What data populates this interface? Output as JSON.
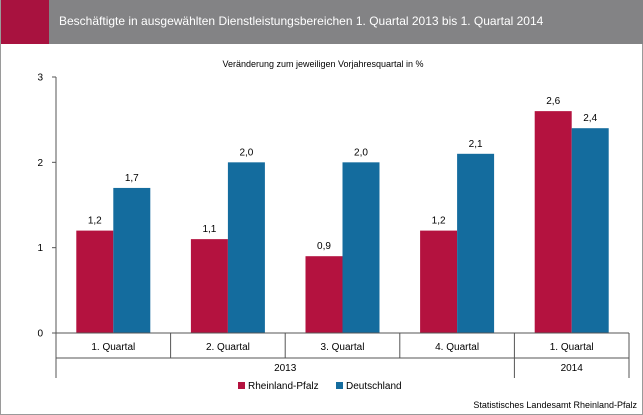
{
  "header": {
    "title": "Beschäftigte in ausgewählten Dienstleistungsbereichen 1. Quartal 2013 bis 1. Quartal 2014"
  },
  "source": "Statistisches Landesamt Rheinland-Pfalz",
  "colors": {
    "header_bg": "#838385",
    "accent": "#a8123f",
    "rheinland_pfalz": "#b4123f",
    "deutschland": "#146c9e"
  },
  "chart_data": {
    "type": "bar",
    "subtitle": "Veränderung zum jeweiligen Vorjahresquartal in %",
    "categories": [
      "1. Quartal",
      "2. Quartal",
      "3. Quartal",
      "4. Quartal",
      "1. Quartal"
    ],
    "year_groups": [
      {
        "label": "2013",
        "from": 0,
        "to": 3
      },
      {
        "label": "2014",
        "from": 4,
        "to": 4
      }
    ],
    "series": [
      {
        "name": "Rheinland-Pfalz",
        "values": [
          1.2,
          1.1,
          0.9,
          1.2,
          2.6
        ],
        "labels": [
          "1,2",
          "1,1",
          "0,9",
          "1,2",
          "2,6"
        ]
      },
      {
        "name": "Deutschland",
        "values": [
          1.7,
          2.0,
          2.0,
          2.1,
          2.4
        ],
        "labels": [
          "1,7",
          "2,0",
          "2,0",
          "2,1",
          "2,4"
        ]
      }
    ],
    "ylim": [
      0,
      3
    ],
    "yticks": [
      0,
      1,
      2,
      3
    ],
    "legend_position": "bottom",
    "grid": false
  }
}
